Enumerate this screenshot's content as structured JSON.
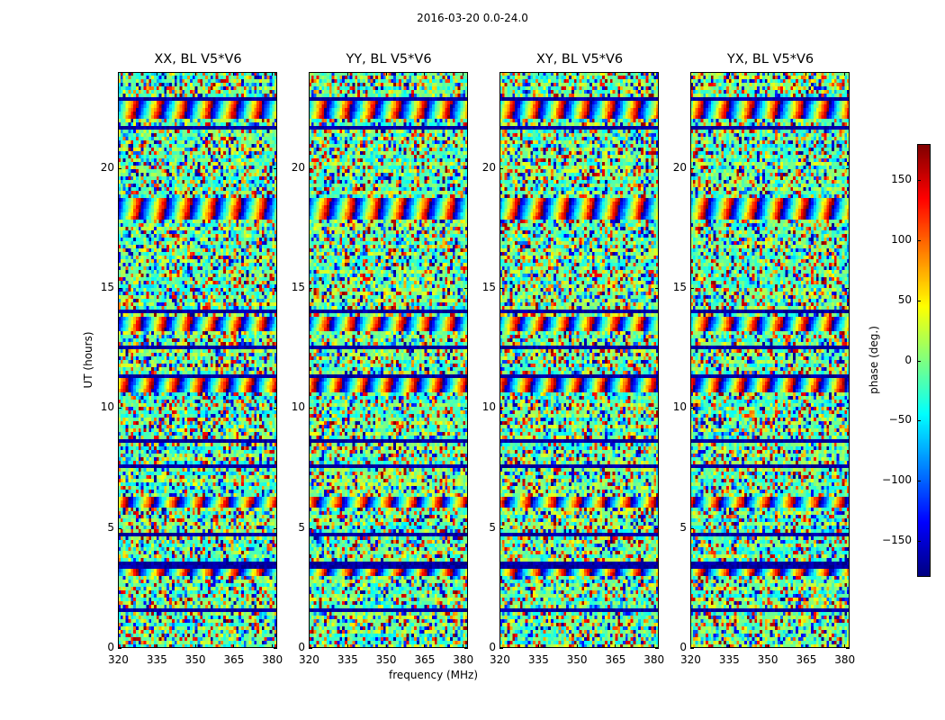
{
  "chart_data": {
    "type": "heatmap",
    "suptitle": "2016-03-20 0.0-24.0",
    "xlabel": "frequency (MHz)",
    "ylabel": "UT (hours)",
    "colorbar_label": "phase (deg.)",
    "colormap": "jet",
    "vmin": -180,
    "vmax": 180,
    "xlim": [
      320,
      382
    ],
    "ylim": [
      0,
      24
    ],
    "xticks": [
      320,
      335,
      350,
      365,
      380
    ],
    "yticks": [
      0,
      5,
      10,
      15,
      20
    ],
    "colorbar_ticks": [
      -150,
      -100,
      -50,
      0,
      50,
      100,
      150
    ],
    "colorbar_tick_labels": [
      "−150",
      "−100",
      "−50",
      "0",
      "50",
      "100",
      "150"
    ],
    "panels": [
      {
        "title": "XX, BL V5*V6",
        "pol": "XX"
      },
      {
        "title": "YY, BL V5*V6",
        "pol": "YY"
      },
      {
        "title": "XY, BL V5*V6",
        "pol": "XY"
      },
      {
        "title": "YX, BL V5*V6",
        "pol": "YX"
      }
    ],
    "flagged_bands_ut_hours": [
      [
        1.45,
        1.6
      ],
      [
        3.3,
        3.55
      ],
      [
        4.3,
        4.4
      ],
      [
        4.7,
        4.8
      ],
      [
        7.5,
        7.7
      ],
      [
        8.6,
        8.75
      ],
      [
        11.25,
        11.35
      ],
      [
        12.5,
        12.65
      ],
      [
        13.0,
        13.1
      ],
      [
        14.0,
        14.1
      ],
      [
        16.9,
        17.0
      ],
      [
        18.85,
        18.95
      ],
      [
        21.65,
        21.75
      ],
      [
        22.8,
        22.95
      ]
    ],
    "coherent_bands_ut_hours": [
      [
        3.0,
        3.5
      ],
      [
        13.2,
        13.8
      ],
      [
        17.8,
        18.8
      ],
      [
        22.0,
        23.0
      ],
      [
        10.6,
        11.2
      ],
      [
        5.9,
        6.3
      ]
    ]
  }
}
